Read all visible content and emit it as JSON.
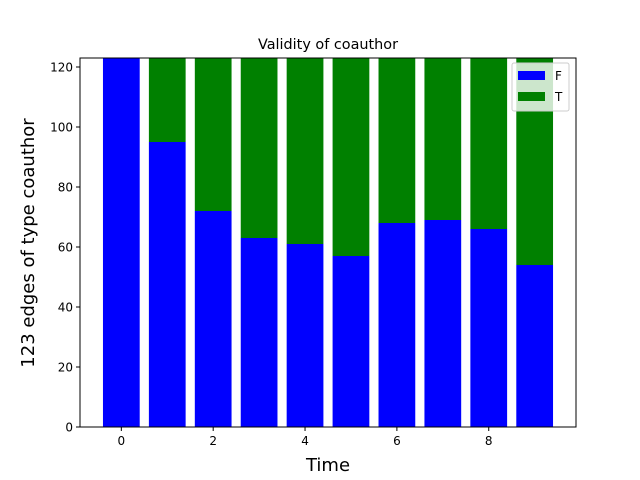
{
  "chart_data": {
    "type": "bar",
    "stacked": true,
    "title": "Validity of coauthor",
    "xlabel": "Time",
    "ylabel": "123 edges  of type coauthor",
    "x": [
      0,
      1,
      2,
      3,
      4,
      5,
      6,
      7,
      8,
      9
    ],
    "xlim": [
      -0.9,
      9.9
    ],
    "ylim": [
      0,
      123
    ],
    "xticks": [
      0,
      2,
      4,
      6,
      8
    ],
    "yticks": [
      0,
      20,
      40,
      60,
      80,
      100,
      120
    ],
    "bar_width": 0.8,
    "grid": false,
    "legend": "top-right",
    "series": [
      {
        "name": "F",
        "color": "#0000ff",
        "values": [
          123,
          95,
          72,
          63,
          61,
          57,
          68,
          69,
          66,
          54
        ]
      },
      {
        "name": "T",
        "color": "#008000",
        "values": [
          0,
          28,
          51,
          60,
          62,
          66,
          55,
          54,
          57,
          69
        ]
      }
    ]
  }
}
